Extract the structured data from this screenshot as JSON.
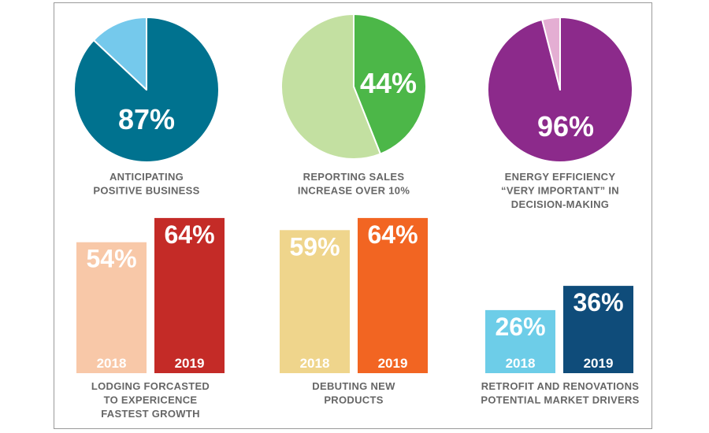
{
  "chart_data": [
    {
      "type": "pie",
      "value_label": "87%",
      "slices": [
        {
          "value": 87,
          "color": "#00728f"
        },
        {
          "value": 13,
          "color": "#75c9ec"
        }
      ],
      "caption": [
        "ANTICIPATING",
        "POSITIVE BUSINESS"
      ]
    },
    {
      "type": "pie",
      "value_label": "44%",
      "slices": [
        {
          "value": 44,
          "color": "#4cb748"
        },
        {
          "value": 56,
          "color": "#c3e0a1"
        }
      ],
      "caption": [
        "REPORTING SALES",
        "INCREASE OVER 10%"
      ]
    },
    {
      "type": "pie",
      "value_label": "96%",
      "slices": [
        {
          "value": 96,
          "color": "#8c2a8b"
        },
        {
          "value": 4,
          "color": "#e4aed3"
        }
      ],
      "caption": [
        "ENERGY EFFICIENCY",
        "“VERY IMPORTANT” IN",
        "DECISION-MAKING"
      ]
    },
    {
      "type": "bar",
      "categories": [
        "2018",
        "2019"
      ],
      "values": [
        54,
        64
      ],
      "value_labels": [
        "54%",
        "64%"
      ],
      "colors": [
        "#f8c8a8",
        "#c42b27"
      ],
      "caption": [
        "LODGING FORCASTED",
        "TO EXPERICENCE",
        "FASTEST GROWTH"
      ]
    },
    {
      "type": "bar",
      "categories": [
        "2018",
        "2019"
      ],
      "values": [
        59,
        64
      ],
      "value_labels": [
        "59%",
        "64%"
      ],
      "colors": [
        "#efd58c",
        "#f26522"
      ],
      "caption": [
        "DEBUTING NEW",
        "PRODUCTS"
      ]
    },
    {
      "type": "bar",
      "categories": [
        "2018",
        "2019"
      ],
      "values": [
        26,
        36
      ],
      "value_labels": [
        "26%",
        "36%"
      ],
      "colors": [
        "#6dcde8",
        "#0f4c7a"
      ],
      "caption": [
        "RETROFIT AND RENOVATIONS",
        "POTENTIAL MARKET DRIVERS"
      ]
    }
  ]
}
